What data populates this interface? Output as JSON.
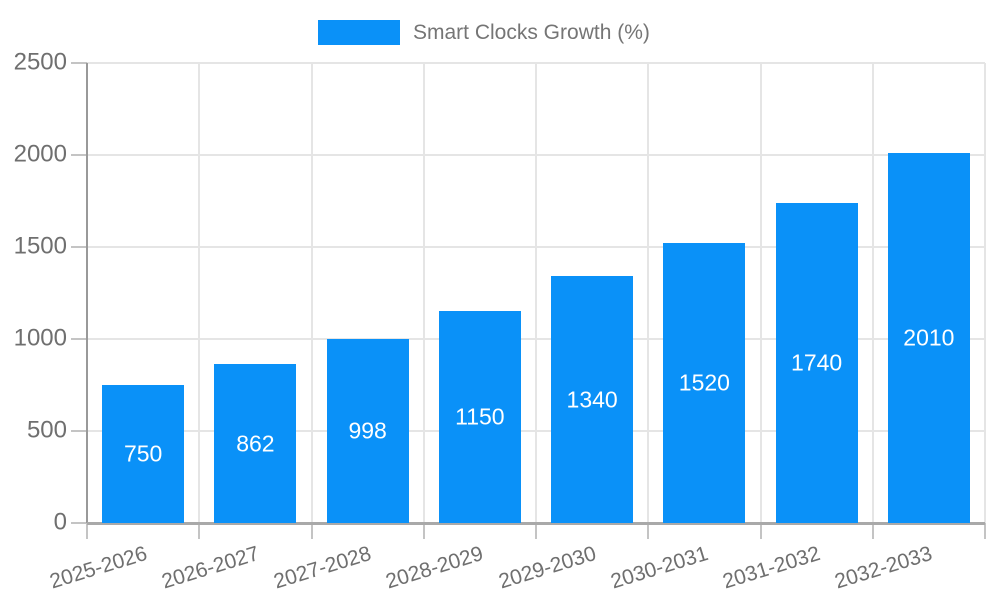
{
  "chart_data": {
    "type": "bar",
    "title": "",
    "legend": {
      "label": "Smart Clocks Growth (%)",
      "position": "top"
    },
    "categories": [
      "2025-2026",
      "2026-2027",
      "2027-2028",
      "2028-2029",
      "2029-2030",
      "2030-2031",
      "2031-2032",
      "2032-2033"
    ],
    "series": [
      {
        "name": "Smart Clocks Growth (%)",
        "values": [
          750,
          862,
          998,
          1150,
          1340,
          1520,
          1740,
          2010
        ]
      }
    ],
    "value_labels": [
      "750",
      "862",
      "998",
      "1150",
      "1340",
      "1520",
      "1740",
      "2010"
    ],
    "xlabel": "",
    "ylabel": "",
    "ylim": [
      0,
      2500
    ],
    "yticks": [
      0,
      500,
      1000,
      1500,
      2000,
      2500
    ],
    "ytick_labels": [
      "0",
      "500",
      "1000",
      "1500",
      "2000",
      "2500"
    ],
    "grid": "on",
    "colors": {
      "bar": "#0a91f8",
      "bar_label_text": "#ffffff",
      "gridline": "#e5e5e5",
      "y_axis_line": "#999999",
      "x_axis_line": "#a9a9a9",
      "tick_mark": "#c4c4c4",
      "tick_text": "#6f6f6f",
      "legend_text": "#757575"
    }
  }
}
